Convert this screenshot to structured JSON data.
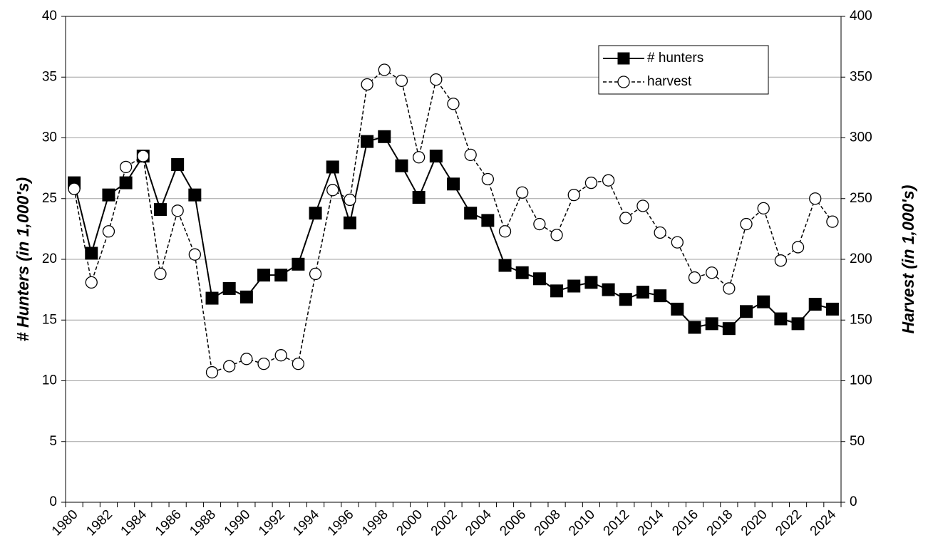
{
  "chart_data": {
    "type": "line",
    "categories": [
      "1980",
      null,
      "1982",
      null,
      "1984",
      null,
      "1986",
      null,
      "1988",
      null,
      "1990",
      null,
      "1992",
      null,
      "1994",
      null,
      "1996",
      null,
      "1998",
      null,
      "2000",
      null,
      "2002",
      null,
      "2004",
      null,
      "2006",
      null,
      "2008",
      null,
      "2010",
      null,
      "2012",
      null,
      "2014",
      null,
      "2016",
      null,
      "2018",
      null,
      "2020",
      null,
      "2022",
      null,
      "2024"
    ],
    "ylabel": "# Hunters (in 1,000's)",
    "y2label": "Harvest (in 1,000's)",
    "ylim": [
      0,
      40
    ],
    "yticks": [
      0,
      5,
      10,
      15,
      20,
      25,
      30,
      35,
      40
    ],
    "y2lim": [
      0,
      400
    ],
    "y2ticks": [
      0,
      50,
      100,
      150,
      200,
      250,
      300,
      350,
      400
    ],
    "grid": true,
    "legend": "upper right",
    "series": [
      {
        "name": "# hunters",
        "color": "#000000",
        "line_style": "solid",
        "marker": "square",
        "values": [
          26.3,
          20.5,
          25.3,
          26.3,
          28.5,
          24.1,
          27.8,
          25.3,
          16.8,
          17.6,
          16.9,
          18.7,
          18.7,
          19.6,
          23.8,
          27.6,
          23.0,
          29.7,
          30.1,
          27.7,
          25.1,
          28.5,
          26.2,
          23.8,
          23.2,
          19.5,
          18.9,
          18.4,
          17.4,
          17.8,
          18.1,
          17.5,
          16.7,
          17.3,
          17.0,
          15.9,
          14.4,
          14.7,
          14.3,
          15.7,
          16.5,
          15.1,
          14.7,
          16.3,
          15.9
        ]
      },
      {
        "name": "harvest",
        "color": "#000000",
        "line_style": "dashed",
        "marker": "circle",
        "axis": "y2",
        "values": [
          258,
          181,
          223,
          276,
          285,
          188,
          240,
          204,
          107,
          112,
          118,
          114,
          121,
          114,
          188,
          257,
          249,
          344,
          356,
          347,
          284,
          348,
          328,
          286,
          266,
          223,
          255,
          229,
          220,
          253,
          263,
          265,
          234,
          244,
          222,
          214,
          185,
          189,
          176,
          229,
          242,
          199,
          210,
          250,
          231
        ]
      }
    ]
  }
}
